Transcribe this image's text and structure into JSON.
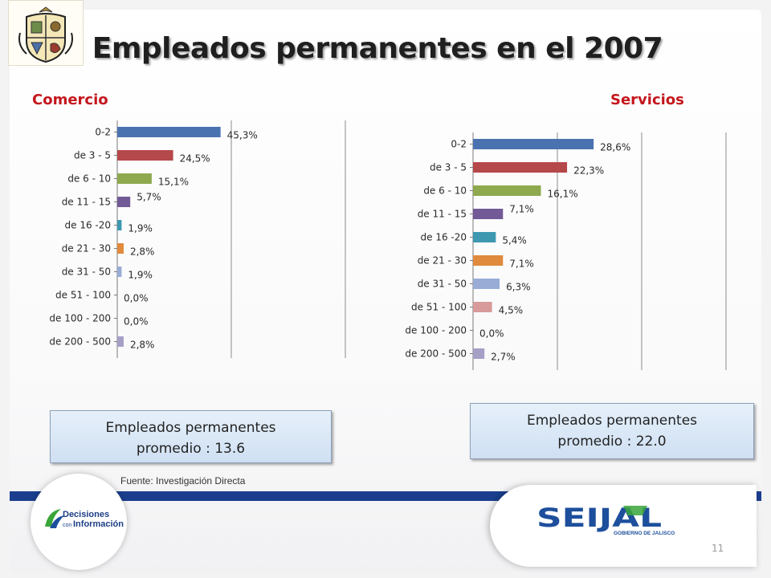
{
  "slide": {
    "title": "Empleados permanentes en el 2007",
    "source": "Fuente: Investigación Directa",
    "page_number": "11"
  },
  "sections": {
    "comercio": {
      "label": "Comercio",
      "summary_line1": "Empleados permanentes",
      "summary_line2": "promedio :  13.6"
    },
    "servicios": {
      "label": "Servicios",
      "summary_line1": "Empleados permanentes",
      "summary_line2": "promedio :  22.0"
    }
  },
  "logos": {
    "decisiones": {
      "line1": "Decisiones",
      "line2_prefix": "con",
      "line2": "Información"
    },
    "seijal": {
      "wordmark": "SEIJAL",
      "tagline": "GOBIERNO DE JALISCO"
    }
  },
  "colors": {
    "title_red": "#c4171d",
    "series": [
      "#4a72b0",
      "#b5484b",
      "#8ea94e",
      "#725a96",
      "#3d98b0",
      "#e08a3d",
      "#98acd6",
      "#d89a9a",
      "#b7a2c7",
      "#a5a0c6"
    ],
    "footer_blue": "#1b3f8e"
  },
  "chart_data": [
    {
      "type": "bar",
      "orientation": "horizontal",
      "title": "Comercio",
      "categories": [
        "0-2",
        "de 3 - 5",
        "de 6 - 10",
        "de 11 - 15",
        "de 16 -20",
        "de 21 - 30",
        "de 31 - 50",
        "de 51 - 100",
        "de 100 - 200",
        "de 200 - 500"
      ],
      "values": [
        45.3,
        24.5,
        15.1,
        5.7,
        1.9,
        2.8,
        1.9,
        0.0,
        0.0,
        2.8
      ],
      "value_labels": [
        "45,3%",
        "24,5%",
        "15,1%",
        "5,7%",
        "1,9%",
        "2,8%",
        "1,9%",
        "0,0%",
        "0,0%",
        "2,8%"
      ],
      "xlim": [
        0,
        100
      ],
      "grid": true,
      "legend": "none"
    },
    {
      "type": "bar",
      "orientation": "horizontal",
      "title": "Servicios",
      "categories": [
        "0-2",
        "de 3 - 5",
        "de 6 - 10",
        "de 11 - 15",
        "de 16 -20",
        "de 21 - 30",
        "de 31 - 50",
        "de 51 - 100",
        "de 100 - 200",
        "de 200 - 500"
      ],
      "values": [
        28.6,
        22.3,
        16.1,
        7.1,
        5.4,
        7.1,
        6.3,
        4.5,
        0.0,
        2.7
      ],
      "value_labels": [
        "28,6%",
        "22,3%",
        "16,1%",
        "7,1%",
        "5,4%",
        "7,1%",
        "6,3%",
        "4,5%",
        "0,0%",
        "2,7%"
      ],
      "xlim": [
        0,
        60
      ],
      "grid": true,
      "legend": "none"
    }
  ]
}
